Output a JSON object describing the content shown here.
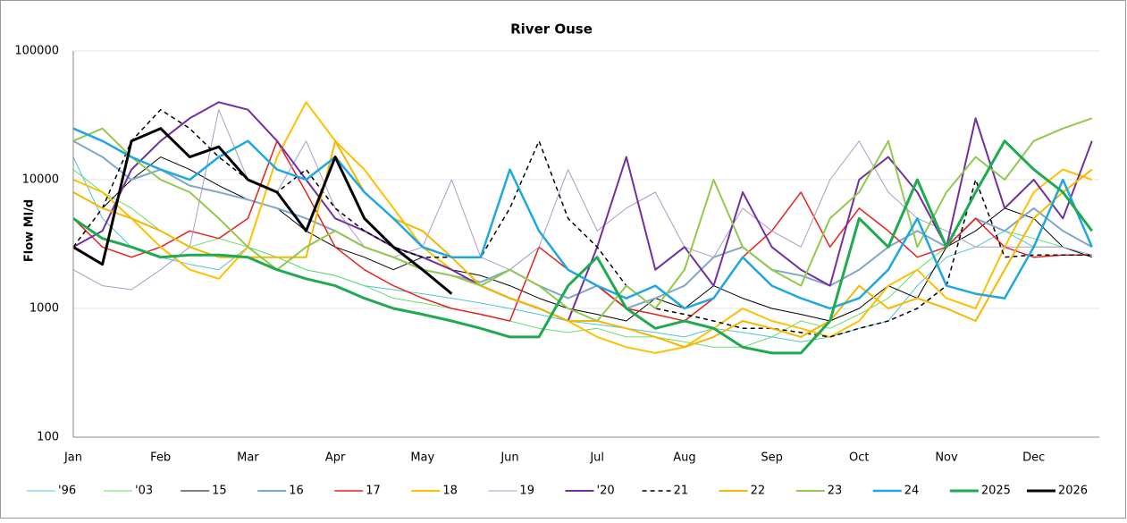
{
  "chart_data": {
    "type": "line",
    "title": "River Ouse",
    "y_label": "Flow Ml/d",
    "log_scale": true,
    "grid": true,
    "legend": "bottom",
    "ylim": [
      100,
      100000
    ],
    "yticks": [
      100,
      1000,
      10000,
      100000
    ],
    "categories": [
      "Jan",
      null,
      null,
      "Feb",
      null,
      null,
      "Mar",
      null,
      null,
      "Apr",
      null,
      null,
      "May",
      null,
      null,
      "Jun",
      null,
      null,
      "Jul",
      null,
      null,
      "Aug",
      null,
      null,
      "Sep",
      null,
      null,
      "Oct",
      null,
      null,
      "Nov",
      null,
      null,
      "Dec",
      null,
      null
    ],
    "series": [
      {
        "name": "'96",
        "color": "#4fc3d9",
        "line_width": 1,
        "dashed": false,
        "values": [
          15000,
          5000,
          3000,
          2500,
          2200,
          2000,
          3000,
          2500,
          2000,
          1800,
          1500,
          1400,
          1300,
          1200,
          1100,
          1000,
          900,
          800,
          750,
          700,
          650,
          600,
          700,
          650,
          600,
          550,
          600,
          700,
          800,
          1500,
          2500,
          3000,
          4000,
          3000,
          3000,
          2500
        ]
      },
      {
        "name": "'03",
        "color": "#66dd66",
        "line_width": 1,
        "dashed": false,
        "values": [
          12000,
          8000,
          6000,
          4000,
          3000,
          3500,
          3000,
          2500,
          2000,
          1800,
          1500,
          1200,
          1100,
          1000,
          900,
          800,
          700,
          650,
          700,
          600,
          600,
          550,
          500,
          500,
          600,
          800,
          700,
          900,
          1200,
          2000,
          3000,
          5000,
          4000,
          3500,
          3000,
          2500
        ]
      },
      {
        "name": "15",
        "color": "#000000",
        "line_width": 1,
        "dashed": false,
        "values": [
          8000,
          6000,
          10000,
          15000,
          12000,
          9000,
          7000,
          6000,
          4000,
          3000,
          2500,
          2000,
          2500,
          2000,
          1800,
          1500,
          1200,
          1000,
          900,
          800,
          1200,
          1000,
          1500,
          1200,
          1000,
          900,
          800,
          1000,
          1500,
          1200,
          3000,
          4000,
          6000,
          5000,
          3000,
          2500
        ]
      },
      {
        "name": "16",
        "color": "#7fa7c9",
        "line_width": 2,
        "dashed": false,
        "values": [
          20000,
          15000,
          10000,
          12000,
          9000,
          8000,
          7000,
          6000,
          5000,
          4000,
          3000,
          2500,
          2000,
          1800,
          1600,
          2000,
          1500,
          1200,
          1500,
          1000,
          1200,
          1500,
          2500,
          3000,
          2000,
          1800,
          1500,
          2000,
          3000,
          4000,
          3000,
          5000,
          4000,
          6000,
          4000,
          3000
        ]
      },
      {
        "name": "17",
        "color": "#e8211e",
        "line_width": 1.5,
        "dashed": false,
        "values": [
          5000,
          3000,
          2500,
          3000,
          4000,
          3500,
          5000,
          20000,
          8000,
          3000,
          2000,
          1500,
          1200,
          1000,
          900,
          800,
          3000,
          2000,
          1500,
          1000,
          900,
          800,
          1200,
          2500,
          4000,
          8000,
          3000,
          6000,
          4000,
          2500,
          3000,
          5000,
          3000,
          2500,
          2600,
          2600
        ]
      },
      {
        "name": "18",
        "color": "#ffc000",
        "line_width": 2,
        "dashed": false,
        "values": [
          10000,
          8000,
          5000,
          3000,
          2000,
          1700,
          3000,
          15000,
          40000,
          20000,
          12000,
          6000,
          3000,
          2000,
          1500,
          1200,
          1000,
          800,
          600,
          500,
          450,
          500,
          700,
          1000,
          800,
          700,
          600,
          800,
          1500,
          2000,
          1200,
          1000,
          3000,
          8000,
          12000,
          10000
        ]
      },
      {
        "name": "19",
        "color": "#a89cc8",
        "line_width": 1,
        "dashed": false,
        "values": [
          2000,
          1500,
          1400,
          2000,
          3000,
          35000,
          10000,
          8000,
          20000,
          6000,
          3000,
          2500,
          3000,
          10000,
          2500,
          2000,
          3000,
          12000,
          4000,
          6000,
          8000,
          3000,
          2500,
          6000,
          4000,
          3000,
          10000,
          20000,
          8000,
          5000,
          4000,
          3000,
          3000,
          3000,
          3000,
          2600
        ]
      },
      {
        "name": "'20",
        "color": "#7030a0",
        "line_width": 2,
        "dashed": false,
        "values": [
          3000,
          4000,
          12000,
          20000,
          30000,
          40000,
          35000,
          20000,
          10000,
          5000,
          4000,
          3000,
          2500,
          2000,
          1500,
          1200,
          1000,
          800,
          3000,
          15000,
          2000,
          3000,
          1500,
          8000,
          3000,
          2000,
          1500,
          10000,
          15000,
          8000,
          3000,
          30000,
          6000,
          10000,
          5000,
          20000
        ]
      },
      {
        "name": "21",
        "color": "#000000",
        "line_width": 1.5,
        "dashed": true,
        "values": [
          3000,
          6000,
          20000,
          35000,
          25000,
          15000,
          10000,
          8000,
          12000,
          6000,
          4000,
          3000,
          2500,
          2500,
          2500,
          6000,
          20000,
          5000,
          3000,
          1500,
          1000,
          900,
          800,
          700,
          700,
          650,
          600,
          700,
          800,
          1000,
          1500,
          10000,
          2500,
          2600,
          2600,
          2600
        ]
      },
      {
        "name": "22",
        "color": "#f5b800",
        "line_width": 2,
        "dashed": false,
        "values": [
          8000,
          6000,
          5000,
          4000,
          3000,
          2500,
          2500,
          2500,
          2500,
          20000,
          8000,
          5000,
          4000,
          2500,
          1500,
          1200,
          1000,
          800,
          800,
          700,
          600,
          500,
          600,
          800,
          700,
          600,
          800,
          1500,
          1000,
          1200,
          1000,
          800,
          2000,
          5000,
          8000,
          12000
        ]
      },
      {
        "name": "23",
        "color": "#92c94c",
        "line_width": 2,
        "dashed": false,
        "values": [
          20000,
          25000,
          15000,
          10000,
          8000,
          5000,
          3000,
          2000,
          3000,
          4000,
          3000,
          2500,
          2000,
          1800,
          1500,
          2000,
          1500,
          1000,
          800,
          1500,
          1000,
          2000,
          10000,
          3000,
          2000,
          1500,
          5000,
          8000,
          20000,
          3000,
          8000,
          15000,
          10000,
          20000,
          25000,
          30000
        ]
      },
      {
        "name": "24",
        "color": "#1ea7e1",
        "line_width": 2.5,
        "dashed": false,
        "values": [
          25000,
          20000,
          15000,
          12000,
          10000,
          15000,
          20000,
          12000,
          10000,
          15000,
          8000,
          5000,
          3000,
          2500,
          2500,
          12000,
          4000,
          2000,
          1500,
          1200,
          1500,
          1000,
          1200,
          2500,
          1500,
          1200,
          1000,
          1200,
          2000,
          5000,
          1500,
          1300,
          1200,
          3000,
          10000,
          3000
        ]
      },
      {
        "name": "2025",
        "color": "#1faa50",
        "line_width": 3,
        "dashed": false,
        "values": [
          5000,
          3500,
          3000,
          2500,
          2600,
          2600,
          2500,
          2000,
          1700,
          1500,
          1200,
          1000,
          900,
          800,
          700,
          600,
          600,
          1500,
          2500,
          1000,
          700,
          800,
          700,
          500,
          450,
          450,
          800,
          5000,
          3000,
          10000,
          3000,
          8000,
          20000,
          12000,
          8000,
          4000
        ]
      },
      {
        "name": "2026",
        "color": "#000000",
        "line_width": 3,
        "dashed": false,
        "values": [
          3000,
          2200,
          20000,
          25000,
          15000,
          18000,
          10000,
          8000,
          4000,
          15000,
          5000,
          3000,
          2000,
          1300,
          null,
          null,
          null,
          null,
          null,
          null,
          null,
          null,
          null,
          null,
          null,
          null,
          null,
          null,
          null,
          null,
          null,
          null,
          null,
          null,
          null,
          null
        ]
      }
    ]
  }
}
